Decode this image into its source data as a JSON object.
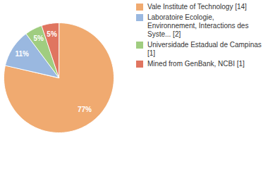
{
  "chart_data": {
    "type": "pie",
    "categories": [
      "Vale Institute of Technology [14]",
      "Laboratoire Ecologie, Environnement, Interactions des Syste... [2]",
      "Universidade Estadual de Campinas [1]",
      "Mined from GenBank, NCBI [1]"
    ],
    "values": [
      77,
      11,
      5,
      5
    ],
    "value_labels": [
      "77%",
      "11%",
      "5%",
      "5%"
    ],
    "colors": [
      "#f0aa70",
      "#9ab8e0",
      "#a0cd80",
      "#e07560"
    ],
    "data_labels": true,
    "legend": "top-right"
  }
}
